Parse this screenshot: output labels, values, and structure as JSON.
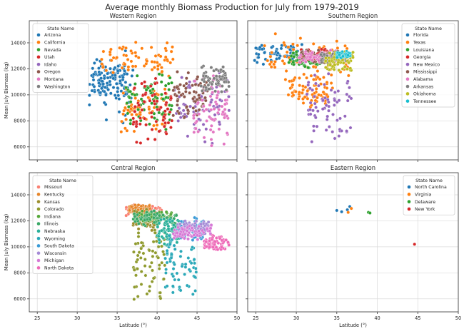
{
  "title": "Average monthly Biomass Production for July from 1979-2019",
  "chart_data": [
    {
      "type": "scatter",
      "title": "Western Region",
      "xlabel": "",
      "ylabel": "Mean July Biomass (kg)",
      "xlim": [
        24,
        50
      ],
      "ylim": [
        5000,
        15700
      ],
      "xticks": [
        25,
        30,
        35,
        40,
        45,
        50
      ],
      "yticks": [
        6000,
        8000,
        10000,
        12000,
        14000
      ],
      "grid": true,
      "legend_title": "State Name",
      "legend_position": "top-left",
      "series": [
        {
          "name": "Arizona",
          "color": "#1f77b4",
          "clusters": [
            {
              "x": [
                31.5,
                37.0
              ],
              "y": [
                7300,
                14100
              ]
            },
            {
              "x": [
                31.8,
                36.0
              ],
              "y": [
                9800,
                12900
              ]
            }
          ]
        },
        {
          "name": "California",
          "color": "#ff7f0e",
          "clusters": [
            {
              "x": [
                33.0,
                42.0
              ],
              "y": [
                11200,
                14100
              ]
            },
            {
              "x": [
                35.5,
                41.5
              ],
              "y": [
                7000,
                11000
              ]
            }
          ]
        },
        {
          "name": "Nevada",
          "color": "#2ca02c",
          "clusters": [
            {
              "x": [
                36.0,
                42.0
              ],
              "y": [
                7200,
                12000
              ]
            }
          ]
        },
        {
          "name": "Utah",
          "color": "#d62728",
          "clusters": [
            {
              "x": [
                37.0,
                42.0
              ],
              "y": [
                6000,
                11800
              ]
            }
          ]
        },
        {
          "name": "Idaho",
          "color": "#9467bd",
          "clusters": [
            {
              "x": [
                42.0,
                49.0
              ],
              "y": [
                5800,
                12000
              ]
            }
          ]
        },
        {
          "name": "Oregon",
          "color": "#8c564b",
          "clusters": [
            {
              "x": [
                42.0,
                46.3
              ],
              "y": [
                8000,
                12200
              ]
            }
          ]
        },
        {
          "name": "Montana",
          "color": "#e377c2",
          "clusters": [
            {
              "x": [
                44.5,
                49.0
              ],
              "y": [
                5900,
                11900
              ]
            }
          ]
        },
        {
          "name": "Washington",
          "color": "#7f7f7f",
          "clusters": [
            {
              "x": [
                45.5,
                49.0
              ],
              "y": [
                10000,
                12400
              ]
            }
          ]
        }
      ]
    },
    {
      "type": "scatter",
      "title": "Southern Region",
      "xlabel": "",
      "ylabel": "",
      "xlim": [
        24,
        50
      ],
      "ylim": [
        5000,
        15700
      ],
      "xticks": [
        25,
        30,
        35,
        40,
        45,
        50
      ],
      "yticks": [
        6000,
        8000,
        10000,
        12000,
        14000
      ],
      "grid": true,
      "legend_title": "State Name",
      "legend_position": "top-right",
      "series": [
        {
          "name": "Florida",
          "color": "#1f77b4",
          "clusters": [
            {
              "x": [
                24.8,
                31.0
              ],
              "y": [
                12300,
                14000
              ]
            }
          ]
        },
        {
          "name": "Texas",
          "color": "#ff7f0e",
          "clusters": [
            {
              "x": [
                26.0,
                36.5
              ],
              "y": [
                10000,
                14800
              ]
            },
            {
              "x": [
                29.0,
                34.0
              ],
              "y": [
                8800,
                11500
              ]
            }
          ]
        },
        {
          "name": "Louisiana",
          "color": "#2ca02c",
          "clusters": [
            {
              "x": [
                29.0,
                33.0
              ],
              "y": [
                12000,
                13400
              ]
            }
          ]
        },
        {
          "name": "Georgia",
          "color": "#d62728",
          "clusters": [
            {
              "x": [
                30.5,
                35.0
              ],
              "y": [
                12500,
                13600
              ]
            }
          ]
        },
        {
          "name": "New Mexico",
          "color": "#9467bd",
          "clusters": [
            {
              "x": [
                31.3,
                37.0
              ],
              "y": [
                6000,
                12000
              ]
            }
          ]
        },
        {
          "name": "Mississippi",
          "color": "#8c564b",
          "clusters": [
            {
              "x": [
                30.2,
                35.0
              ],
              "y": [
                12400,
                13500
              ]
            }
          ]
        },
        {
          "name": "Alabama",
          "color": "#e377c2",
          "clusters": [
            {
              "x": [
                30.2,
                35.0
              ],
              "y": [
                12300,
                13500
              ]
            }
          ]
        },
        {
          "name": "Arkansas",
          "color": "#7f7f7f",
          "clusters": [
            {
              "x": [
                33.0,
                36.5
              ],
              "y": [
                12400,
                13400
              ]
            }
          ]
        },
        {
          "name": "Oklahoma",
          "color": "#bcbd22",
          "clusters": [
            {
              "x": [
                33.6,
                37.0
              ],
              "y": [
                11700,
                13500
              ]
            }
          ]
        },
        {
          "name": "Tennessee",
          "color": "#17becf",
          "clusters": [
            {
              "x": [
                35.0,
                36.7
              ],
              "y": [
                12800,
                13400
              ]
            }
          ]
        }
      ]
    },
    {
      "type": "scatter",
      "title": "Central Region",
      "xlabel": "Latitude (°)",
      "ylabel": "Mean July Biomass (kg)",
      "xlim": [
        24,
        50
      ],
      "ylim": [
        5000,
        15700
      ],
      "xticks": [
        25,
        30,
        35,
        40,
        45,
        50
      ],
      "yticks": [
        6000,
        8000,
        10000,
        12000,
        14000
      ],
      "grid": true,
      "legend_title": "State Name",
      "legend_position": "top-left",
      "series": [
        {
          "name": "Missouri",
          "color": "#fa8072",
          "clusters": [
            {
              "x": [
                36.0,
                40.6
              ],
              "y": [
                12300,
                13300
              ]
            }
          ]
        },
        {
          "name": "Kentucky",
          "color": "#e6852a",
          "clusters": [
            {
              "x": [
                36.5,
                39.1
              ],
              "y": [
                12500,
                13300
              ]
            }
          ]
        },
        {
          "name": "Kansas",
          "color": "#9c8e2e",
          "clusters": [
            {
              "x": [
                37.0,
                40.0
              ],
              "y": [
                11000,
                13000
              ]
            }
          ]
        },
        {
          "name": "Colorado",
          "color": "#8f9a2e",
          "clusters": [
            {
              "x": [
                37.0,
                41.0
              ],
              "y": [
                5200,
                12500
              ]
            }
          ]
        },
        {
          "name": "Indiana",
          "color": "#56a83a",
          "clusters": [
            {
              "x": [
                37.8,
                41.8
              ],
              "y": [
                11800,
                12800
              ]
            }
          ]
        },
        {
          "name": "Illinois",
          "color": "#3aa866",
          "clusters": [
            {
              "x": [
                37.0,
                42.5
              ],
              "y": [
                11500,
                12900
              ]
            }
          ]
        },
        {
          "name": "Nebraska",
          "color": "#2ab09a",
          "clusters": [
            {
              "x": [
                40.0,
                43.0
              ],
              "y": [
                10000,
                12200
              ]
            }
          ]
        },
        {
          "name": "Wyoming",
          "color": "#2aa8b8",
          "clusters": [
            {
              "x": [
                41.0,
                45.0
              ],
              "y": [
                6000,
                11500
              ]
            }
          ]
        },
        {
          "name": "South Dakota",
          "color": "#3a9ad6",
          "clusters": [
            {
              "x": [
                42.5,
                45.9
              ],
              "y": [
                10500,
                12300
              ]
            }
          ]
        },
        {
          "name": "Wisconsin",
          "color": "#a58bd6",
          "clusters": [
            {
              "x": [
                42.5,
                46.5
              ],
              "y": [
                10800,
                12100
              ]
            }
          ]
        },
        {
          "name": "Michigan",
          "color": "#d67ad6",
          "clusters": [
            {
              "x": [
                42.0,
                47.0
              ],
              "y": [
                10500,
                11800
              ]
            }
          ]
        },
        {
          "name": "North Dakota",
          "color": "#ee6ab8",
          "clusters": [
            {
              "x": [
                45.9,
                49.0
              ],
              "y": [
                9600,
                11000
              ]
            }
          ]
        }
      ]
    },
    {
      "type": "scatter",
      "title": "Eastern Region",
      "xlabel": "Latitude (°)",
      "ylabel": "",
      "xlim": [
        24,
        50
      ],
      "ylim": [
        5000,
        15700
      ],
      "xticks": [
        25,
        30,
        35,
        40,
        45,
        50
      ],
      "yticks": [
        6000,
        8000,
        10000,
        12000,
        14000
      ],
      "grid": true,
      "legend_title": "State Name",
      "legend_position": "top-right",
      "series": [
        {
          "name": "North Carolina",
          "color": "#1f77b4",
          "points": [
            [
              35.0,
              12800
            ],
            [
              35.6,
              12700
            ],
            [
              36.3,
              12850
            ],
            [
              36.6,
              13100
            ]
          ]
        },
        {
          "name": "Virginia",
          "color": "#ff7f0e",
          "points": [
            [
              36.4,
              12650
            ],
            [
              36.8,
              12950
            ]
          ]
        },
        {
          "name": "Delaware",
          "color": "#2ca02c",
          "points": [
            [
              38.9,
              12650
            ],
            [
              39.1,
              12600
            ]
          ]
        },
        {
          "name": "New York",
          "color": "#d62728",
          "points": [
            [
              44.6,
              10200
            ]
          ]
        }
      ]
    }
  ]
}
